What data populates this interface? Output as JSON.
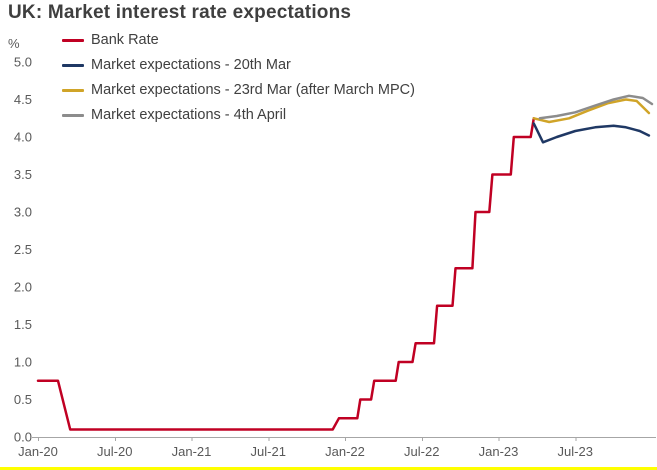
{
  "title": "UK: Market interest rate expectations",
  "y_axis_unit": "%",
  "accent_bar_color": "#ffff00",
  "chart_data": {
    "type": "line",
    "title": "UK: Market interest rate expectations",
    "xlabel": "",
    "ylabel": "%",
    "ylim": [
      0,
      5
    ],
    "y_tick_step": 0.5,
    "xlim": [
      2020.0,
      2024.0
    ],
    "grid": false,
    "legend_position": "top-left",
    "axis_color": "#a6a6a6",
    "tick_label_color": "#595959",
    "x_ticks": [
      {
        "label": "Jan-20",
        "x": 2020.0
      },
      {
        "label": "Jul-20",
        "x": 2020.5
      },
      {
        "label": "Jan-21",
        "x": 2021.0
      },
      {
        "label": "Jul-21",
        "x": 2021.5
      },
      {
        "label": "Jan-22",
        "x": 2022.0
      },
      {
        "label": "Jul-22",
        "x": 2022.5
      },
      {
        "label": "Jan-23",
        "x": 2023.0
      },
      {
        "label": "Jul-23",
        "x": 2023.5
      }
    ],
    "series": [
      {
        "name": "Bank Rate",
        "color": "#c00023",
        "points": [
          [
            2020.0,
            0.75
          ],
          [
            2020.13,
            0.75
          ],
          [
            2020.21,
            0.1
          ],
          [
            2021.92,
            0.1
          ],
          [
            2021.96,
            0.25
          ],
          [
            2022.08,
            0.25
          ],
          [
            2022.1,
            0.5
          ],
          [
            2022.17,
            0.5
          ],
          [
            2022.19,
            0.75
          ],
          [
            2022.33,
            0.75
          ],
          [
            2022.35,
            1.0
          ],
          [
            2022.44,
            1.0
          ],
          [
            2022.46,
            1.25
          ],
          [
            2022.58,
            1.25
          ],
          [
            2022.6,
            1.75
          ],
          [
            2022.7,
            1.75
          ],
          [
            2022.72,
            2.25
          ],
          [
            2022.83,
            2.25
          ],
          [
            2022.85,
            3.0
          ],
          [
            2022.94,
            3.0
          ],
          [
            2022.96,
            3.5
          ],
          [
            2023.08,
            3.5
          ],
          [
            2023.1,
            4.0
          ],
          [
            2023.21,
            4.0
          ],
          [
            2023.23,
            4.25
          ]
        ]
      },
      {
        "name": "Market expectations - 20th Mar",
        "color": "#1f3864",
        "points": [
          [
            2023.23,
            4.18
          ],
          [
            2023.29,
            3.93
          ],
          [
            2023.38,
            4.0
          ],
          [
            2023.5,
            4.08
          ],
          [
            2023.63,
            4.13
          ],
          [
            2023.75,
            4.15
          ],
          [
            2023.83,
            4.13
          ],
          [
            2023.92,
            4.08
          ],
          [
            2023.98,
            4.02
          ]
        ]
      },
      {
        "name": "Market expectations - 23rd Mar (after March MPC)",
        "color": "#d0a428",
        "points": [
          [
            2023.23,
            4.25
          ],
          [
            2023.33,
            4.2
          ],
          [
            2023.46,
            4.25
          ],
          [
            2023.58,
            4.35
          ],
          [
            2023.71,
            4.45
          ],
          [
            2023.83,
            4.5
          ],
          [
            2023.9,
            4.48
          ],
          [
            2023.98,
            4.32
          ]
        ]
      },
      {
        "name": "Market expectations - 4th April",
        "color": "#8c8c8c",
        "points": [
          [
            2023.27,
            4.25
          ],
          [
            2023.38,
            4.28
          ],
          [
            2023.5,
            4.33
          ],
          [
            2023.63,
            4.42
          ],
          [
            2023.75,
            4.5
          ],
          [
            2023.85,
            4.55
          ],
          [
            2023.94,
            4.52
          ],
          [
            2024.0,
            4.44
          ]
        ]
      }
    ]
  }
}
